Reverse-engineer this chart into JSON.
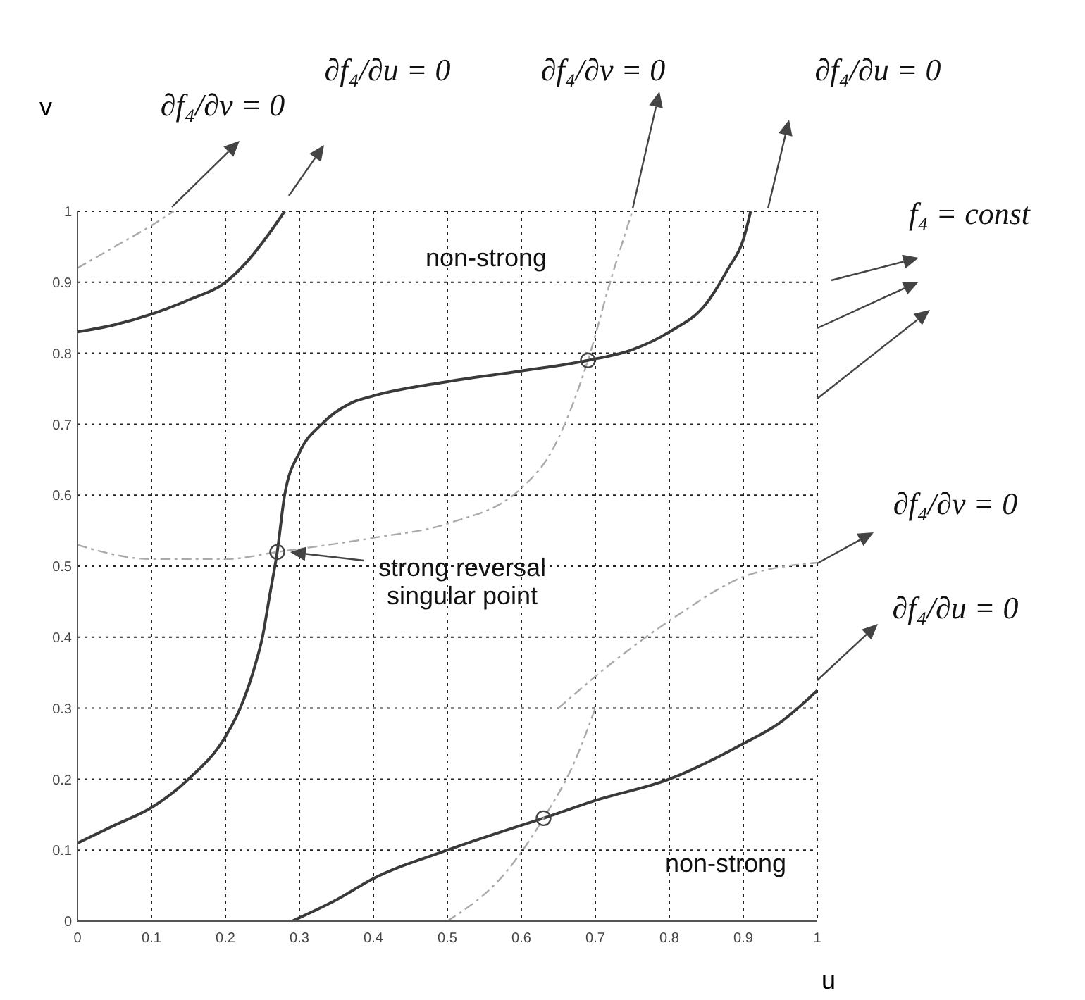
{
  "chart_data": {
    "type": "line",
    "xlabel": "u",
    "ylabel": "v",
    "xlim": [
      0,
      1
    ],
    "ylim": [
      0,
      1
    ],
    "xticks": [
      0,
      0.1,
      0.2,
      0.3,
      0.4,
      0.5,
      0.6,
      0.7,
      0.8,
      0.9,
      1
    ],
    "yticks": [
      0,
      0.1,
      0.2,
      0.3,
      0.4,
      0.5,
      0.6,
      0.7,
      0.8,
      0.9,
      1
    ],
    "grid": true,
    "marker": "none",
    "series": [
      {
        "color": "#3a3a3a",
        "line_style": "solid",
        "x": [
          0,
          0.05,
          0.1,
          0.15,
          0.2,
          0.23,
          0.26,
          0.28
        ],
        "values": [
          0.83,
          0.84,
          0.855,
          0.875,
          0.9,
          0.93,
          0.97,
          1.0
        ]
      },
      {
        "color": "#3a3a3a",
        "line_style": "solid",
        "x": [
          0,
          0.05,
          0.1,
          0.15,
          0.2,
          0.22,
          0.24,
          0.25,
          0.26,
          0.27,
          0.28,
          0.3,
          0.33,
          0.37,
          0.4,
          0.5,
          0.6,
          0.69,
          0.75,
          0.8,
          0.85,
          0.88,
          0.9,
          0.91
        ],
        "values": [
          0.11,
          0.135,
          0.16,
          0.2,
          0.26,
          0.3,
          0.36,
          0.4,
          0.46,
          0.52,
          0.6,
          0.66,
          0.7,
          0.73,
          0.74,
          0.76,
          0.775,
          0.79,
          0.805,
          0.83,
          0.87,
          0.92,
          0.96,
          1.0
        ]
      },
      {
        "color": "#3a3a3a",
        "line_style": "solid",
        "x": [
          0.29,
          0.35,
          0.4,
          0.5,
          0.6,
          0.63,
          0.7,
          0.8,
          0.9,
          0.95,
          1
        ],
        "values": [
          0,
          0.03,
          0.06,
          0.1,
          0.135,
          0.145,
          0.17,
          0.2,
          0.25,
          0.28,
          0.325
        ]
      },
      {
        "color": "#aaaaaa",
        "line_style": "dashed",
        "x": [
          0,
          0.1,
          0.2,
          0.27,
          0.4,
          0.5,
          0.6,
          0.64,
          0.69,
          0.72,
          0.75
        ],
        "values": [
          0.53,
          0.51,
          0.51,
          0.52,
          0.54,
          0.56,
          0.61,
          0.66,
          0.79,
          0.9,
          1.0
        ]
      },
      {
        "color": "#aaaaaa",
        "line_style": "dashed",
        "x": [
          0.5,
          0.58,
          0.63,
          0.67,
          0.7
        ],
        "values": [
          0,
          0.07,
          0.145,
          0.22,
          0.3
        ]
      },
      {
        "color": "#aaaaaa",
        "line_style": "dashed",
        "x": [
          0.65,
          0.73,
          0.81,
          0.9,
          1
        ],
        "values": [
          0.3,
          0.37,
          0.43,
          0.485,
          0.505
        ]
      },
      {
        "color": "#aaaaaa",
        "line_style": "dashed",
        "x": [
          0,
          0.05,
          0.1,
          0.13
        ],
        "values": [
          0.92,
          0.95,
          0.98,
          1.0
        ]
      },
      {
        "type": "scatter",
        "marker": "circle",
        "color": "#444444",
        "x": [
          0.27,
          0.69,
          0.63
        ],
        "values": [
          0.52,
          0.79,
          0.145
        ]
      }
    ],
    "annotations": [
      "∂f₄/∂v = 0",
      "∂f₄/∂u = 0",
      "∂f₄/∂v = 0",
      "∂f₄/∂u = 0",
      "f₄ = const",
      "∂f₄/∂v = 0",
      "∂f₄/∂u = 0",
      "non-strong",
      "strong reversal singular point",
      "non-strong"
    ]
  }
}
